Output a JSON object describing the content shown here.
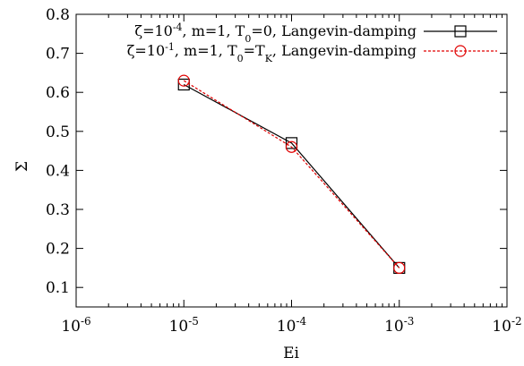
{
  "chart_data": {
    "type": "line",
    "title": "",
    "xlabel": "Ei",
    "ylabel": "Σ",
    "xscale": "log",
    "xlim": [
      1e-06,
      0.01
    ],
    "ylim": [
      0.05,
      0.8
    ],
    "x_ticks": [
      {
        "value": 1e-06,
        "base": "10",
        "exp": "-6"
      },
      {
        "value": 1e-05,
        "base": "10",
        "exp": "-5"
      },
      {
        "value": 0.0001,
        "base": "10",
        "exp": "-4"
      },
      {
        "value": 0.001,
        "base": "10",
        "exp": "-3"
      },
      {
        "value": 0.01,
        "base": "10",
        "exp": "-2"
      }
    ],
    "y_ticks": [
      {
        "value": 0.1,
        "label": "0.1"
      },
      {
        "value": 0.2,
        "label": "0.2"
      },
      {
        "value": 0.3,
        "label": "0.3"
      },
      {
        "value": 0.4,
        "label": "0.4"
      },
      {
        "value": 0.5,
        "label": "0.5"
      },
      {
        "value": 0.6,
        "label": "0.6"
      },
      {
        "value": 0.7,
        "label": "0.7"
      },
      {
        "value": 0.8,
        "label": "0.8"
      }
    ],
    "grid": false,
    "legend_position": "top-right",
    "series": [
      {
        "legend": [
          {
            "t": "ζ=10",
            "sub": false,
            "sup": false
          },
          {
            "t": "-4",
            "sup": true
          },
          {
            "t": ", m=1, T",
            "sup": false
          },
          {
            "t": "0",
            "sub": true
          },
          {
            "t": "=0, Langevin-damping",
            "sup": false
          }
        ],
        "x": [
          1e-05,
          0.0001,
          0.001
        ],
        "y": [
          0.62,
          0.47,
          0.15
        ],
        "color": "#000000",
        "marker": "square",
        "dash": "solid"
      },
      {
        "legend": [
          {
            "t": "ζ=10",
            "sup": false
          },
          {
            "t": "-1",
            "sup": true
          },
          {
            "t": ", m=1, T",
            "sup": false
          },
          {
            "t": "0",
            "sub": true
          },
          {
            "t": "=T",
            "sup": false
          },
          {
            "t": "K",
            "sub": true
          },
          {
            "t": ", Langevin-damping",
            "sup": false
          }
        ],
        "x": [
          1e-05,
          0.0001,
          0.001
        ],
        "y": [
          0.63,
          0.46,
          0.15
        ],
        "color": "#e00000",
        "marker": "circle",
        "dash": "dashed"
      }
    ]
  }
}
